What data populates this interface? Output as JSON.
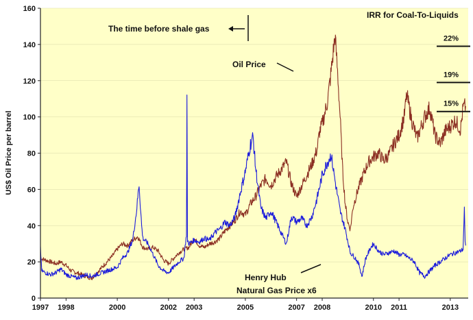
{
  "chart_data": {
    "type": "line",
    "ylabel": "US$ Oil Price per barrel",
    "ylim": [
      0,
      160
    ],
    "yticks": [
      "0",
      "20",
      "40",
      "60",
      "80",
      "100",
      "120",
      "140",
      "160"
    ],
    "xticks": [
      "1997",
      "1998",
      "2000",
      "2002",
      "2003",
      "2005",
      "2007",
      "2008",
      "2010",
      "2011",
      "2013"
    ],
    "xticks_years": [
      1997,
      1998,
      2000,
      2002,
      2003,
      2005,
      2007,
      2008,
      2010,
      2011,
      2013
    ],
    "xlim": [
      1997,
      2013.7
    ],
    "background": "#ffffc8",
    "series": [
      {
        "name": "Oil Price",
        "color": "#8b2e22",
        "points": [
          [
            1997.0,
            22
          ],
          [
            1997.2,
            21
          ],
          [
            1997.4,
            20
          ],
          [
            1997.6,
            19
          ],
          [
            1997.8,
            20
          ],
          [
            1998.0,
            18
          ],
          [
            1998.2,
            15
          ],
          [
            1998.4,
            14
          ],
          [
            1998.6,
            13
          ],
          [
            1998.8,
            12
          ],
          [
            1999.0,
            11
          ],
          [
            1999.2,
            14
          ],
          [
            1999.4,
            17
          ],
          [
            1999.6,
            20
          ],
          [
            1999.8,
            23
          ],
          [
            2000.0,
            27
          ],
          [
            2000.2,
            30
          ],
          [
            2000.4,
            29
          ],
          [
            2000.6,
            32
          ],
          [
            2000.8,
            34
          ],
          [
            2000.9,
            31
          ],
          [
            2001.0,
            28
          ],
          [
            2001.2,
            27
          ],
          [
            2001.4,
            28
          ],
          [
            2001.6,
            26
          ],
          [
            2001.8,
            21
          ],
          [
            2002.0,
            19
          ],
          [
            2002.2,
            22
          ],
          [
            2002.4,
            25
          ],
          [
            2002.6,
            27
          ],
          [
            2002.8,
            28
          ],
          [
            2003.0,
            33
          ],
          [
            2003.2,
            29
          ],
          [
            2003.4,
            28
          ],
          [
            2003.6,
            30
          ],
          [
            2003.8,
            31
          ],
          [
            2004.0,
            33
          ],
          [
            2004.2,
            37
          ],
          [
            2004.4,
            40
          ],
          [
            2004.6,
            43
          ],
          [
            2004.8,
            48
          ],
          [
            2005.0,
            46
          ],
          [
            2005.2,
            52
          ],
          [
            2005.4,
            56
          ],
          [
            2005.6,
            62
          ],
          [
            2005.8,
            66
          ],
          [
            2006.0,
            62
          ],
          [
            2006.2,
            67
          ],
          [
            2006.4,
            71
          ],
          [
            2006.6,
            75
          ],
          [
            2006.8,
            63
          ],
          [
            2007.0,
            56
          ],
          [
            2007.2,
            62
          ],
          [
            2007.4,
            68
          ],
          [
            2007.6,
            74
          ],
          [
            2007.8,
            82
          ],
          [
            2007.9,
            92
          ],
          [
            2008.0,
            96
          ],
          [
            2008.2,
            108
          ],
          [
            2008.35,
            125
          ],
          [
            2008.5,
            145
          ],
          [
            2008.6,
            125
          ],
          [
            2008.7,
            100
          ],
          [
            2008.8,
            70
          ],
          [
            2008.9,
            52
          ],
          [
            2009.0,
            42
          ],
          [
            2009.1,
            38
          ],
          [
            2009.2,
            50
          ],
          [
            2009.4,
            60
          ],
          [
            2009.6,
            68
          ],
          [
            2009.8,
            75
          ],
          [
            2010.0,
            78
          ],
          [
            2010.2,
            80
          ],
          [
            2010.4,
            76
          ],
          [
            2010.6,
            79
          ],
          [
            2010.8,
            85
          ],
          [
            2011.0,
            90
          ],
          [
            2011.2,
            100
          ],
          [
            2011.3,
            112
          ],
          [
            2011.5,
            98
          ],
          [
            2011.7,
            88
          ],
          [
            2011.9,
            96
          ],
          [
            2012.0,
            100
          ],
          [
            2012.2,
            105
          ],
          [
            2012.4,
            90
          ],
          [
            2012.6,
            85
          ],
          [
            2012.8,
            92
          ],
          [
            2013.0,
            95
          ],
          [
            2013.2,
            98
          ],
          [
            2013.4,
            93
          ],
          [
            2013.5,
            105
          ],
          [
            2013.6,
            106
          ]
        ]
      },
      {
        "name": "Henry Hub Natural Gas Price x6",
        "color": "#1a1adb",
        "points": [
          [
            1997.0,
            28
          ],
          [
            1997.05,
            15
          ],
          [
            1997.2,
            14
          ],
          [
            1997.4,
            13
          ],
          [
            1997.6,
            14
          ],
          [
            1997.8,
            16
          ],
          [
            1998.0,
            13
          ],
          [
            1998.2,
            12
          ],
          [
            1998.4,
            11
          ],
          [
            1998.6,
            12
          ],
          [
            1998.8,
            13
          ],
          [
            1999.0,
            12
          ],
          [
            1999.2,
            13
          ],
          [
            1999.4,
            14
          ],
          [
            1999.6,
            15
          ],
          [
            1999.8,
            16
          ],
          [
            2000.0,
            17
          ],
          [
            2000.2,
            22
          ],
          [
            2000.4,
            25
          ],
          [
            2000.6,
            32
          ],
          [
            2000.75,
            48
          ],
          [
            2000.85,
            63
          ],
          [
            2000.95,
            40
          ],
          [
            2001.0,
            33
          ],
          [
            2001.2,
            30
          ],
          [
            2001.4,
            24
          ],
          [
            2001.6,
            18
          ],
          [
            2001.8,
            15
          ],
          [
            2002.0,
            14
          ],
          [
            2002.2,
            17
          ],
          [
            2002.4,
            20
          ],
          [
            2002.6,
            22
          ],
          [
            2002.7,
            35
          ],
          [
            2002.72,
            111
          ],
          [
            2002.74,
            32
          ],
          [
            2002.8,
            30
          ],
          [
            2003.0,
            32
          ],
          [
            2003.2,
            31
          ],
          [
            2003.4,
            33
          ],
          [
            2003.6,
            32
          ],
          [
            2003.8,
            36
          ],
          [
            2004.0,
            38
          ],
          [
            2004.2,
            42
          ],
          [
            2004.4,
            40
          ],
          [
            2004.6,
            45
          ],
          [
            2004.8,
            58
          ],
          [
            2005.0,
            70
          ],
          [
            2005.2,
            85
          ],
          [
            2005.3,
            89
          ],
          [
            2005.4,
            72
          ],
          [
            2005.6,
            50
          ],
          [
            2005.8,
            44
          ],
          [
            2006.0,
            48
          ],
          [
            2006.2,
            42
          ],
          [
            2006.4,
            36
          ],
          [
            2006.6,
            30
          ],
          [
            2006.8,
            45
          ],
          [
            2007.0,
            42
          ],
          [
            2007.2,
            44
          ],
          [
            2007.4,
            40
          ],
          [
            2007.6,
            45
          ],
          [
            2007.8,
            55
          ],
          [
            2008.0,
            68
          ],
          [
            2008.2,
            75
          ],
          [
            2008.35,
            79
          ],
          [
            2008.5,
            65
          ],
          [
            2008.7,
            48
          ],
          [
            2008.9,
            38
          ],
          [
            2009.1,
            25
          ],
          [
            2009.3,
            22
          ],
          [
            2009.45,
            18
          ],
          [
            2009.55,
            12
          ],
          [
            2009.7,
            22
          ],
          [
            2009.9,
            28
          ],
          [
            2010.0,
            30
          ],
          [
            2010.2,
            26
          ],
          [
            2010.4,
            24
          ],
          [
            2010.6,
            25
          ],
          [
            2010.8,
            26
          ],
          [
            2011.0,
            24
          ],
          [
            2011.2,
            24
          ],
          [
            2011.4,
            22
          ],
          [
            2011.6,
            20
          ],
          [
            2011.8,
            14
          ],
          [
            2012.0,
            12
          ],
          [
            2012.2,
            15
          ],
          [
            2012.4,
            18
          ],
          [
            2012.6,
            20
          ],
          [
            2012.8,
            22
          ],
          [
            2013.0,
            24
          ],
          [
            2013.2,
            25
          ],
          [
            2013.4,
            26
          ],
          [
            2013.5,
            27
          ],
          [
            2013.55,
            49
          ],
          [
            2013.58,
            30
          ],
          [
            2013.6,
            29
          ]
        ]
      }
    ],
    "annotations": {
      "shale": "The  time before shale gas",
      "oil": "Oil Price",
      "gas_line1": "Henry Hub",
      "gas_line2": "Natural Gas Price x6",
      "irr_title": "IRR for Coal-To-Liquids"
    },
    "irr_levels": [
      {
        "label": "22%",
        "value": 139
      },
      {
        "label": "19%",
        "value": 119
      },
      {
        "label": "15%",
        "value": 103
      }
    ]
  }
}
